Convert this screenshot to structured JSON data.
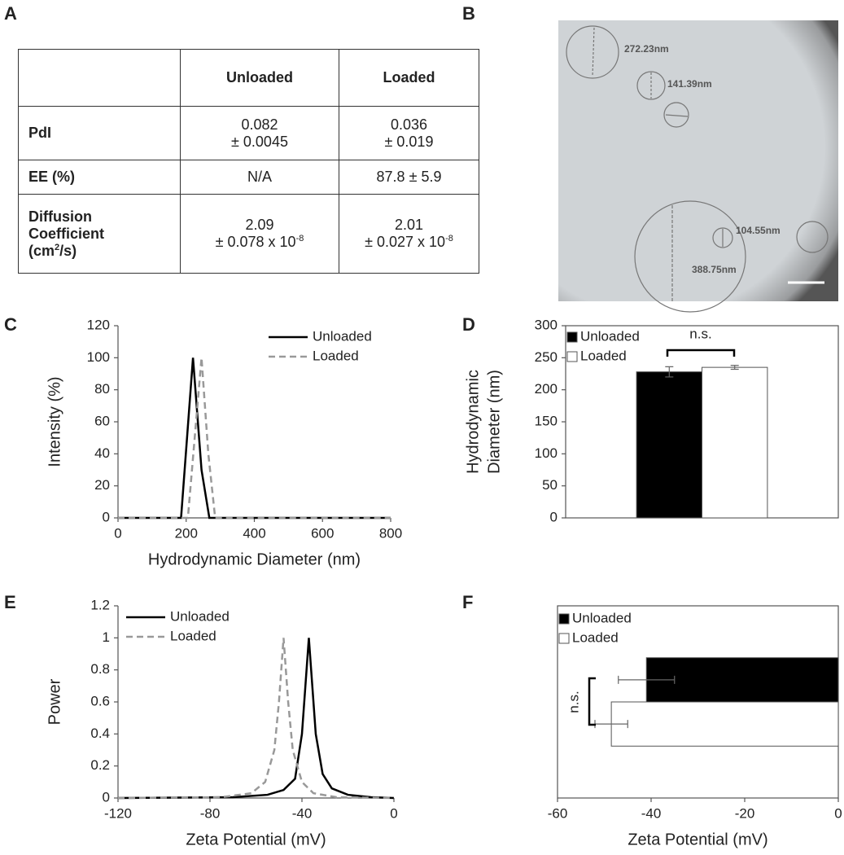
{
  "panel_labels": [
    "A",
    "B",
    "C",
    "D",
    "E",
    "F"
  ],
  "table": {
    "columns": [
      "Unloaded",
      "Loaded"
    ],
    "rows": [
      {
        "header": [
          "PdI"
        ],
        "cells": [
          [
            "0.082",
            "± 0.0045"
          ],
          [
            "0.036",
            "± 0.019"
          ]
        ]
      },
      {
        "header": [
          "EE (%)"
        ],
        "cells": [
          [
            "N/A"
          ],
          [
            "87.8 ± 5.9"
          ]
        ]
      },
      {
        "header": [
          "Diffusion",
          "Coefficient",
          {
            "base": "(cm",
            "sup": "2",
            "tail": "/s)"
          }
        ],
        "cells": [
          [
            "2.09",
            {
              "base": "± 0.078 x 10",
              "sup": "-8"
            }
          ],
          [
            "2.01",
            {
              "base": "± 0.027 x 10",
              "sup": "-8"
            }
          ]
        ]
      }
    ]
  },
  "micrograph": {
    "labels": [
      "272.23nm",
      "141.39nm",
      "104.55nm",
      "388.75nm"
    ]
  },
  "chart_data": [
    {
      "type": "line",
      "x_label": "Hydrodynamic Diameter (nm)",
      "y_label": [
        "Intensity (%)"
      ],
      "xlim": [
        0,
        800
      ],
      "xticks": [
        0,
        200,
        400,
        600,
        800
      ],
      "ylim": [
        0,
        120
      ],
      "yticks": [
        0,
        20,
        40,
        60,
        80,
        100,
        120
      ],
      "legend": "upper right",
      "frame": false,
      "series": [
        {
          "name": "Unloaded",
          "color": "#000000",
          "dash": "solid",
          "x": [
            0,
            185,
            220,
            245,
            268,
            800
          ],
          "values": [
            0,
            0,
            100,
            30,
            0,
            0
          ]
        },
        {
          "name": "Loaded",
          "color": "#999999",
          "dash": "dashed",
          "x": [
            0,
            205,
            245,
            265,
            285,
            800
          ],
          "values": [
            0,
            0,
            100,
            40,
            0,
            0
          ]
        }
      ]
    },
    {
      "type": "bar",
      "y_label": [
        "Hydrodynamic",
        "Diameter (nm)"
      ],
      "categories": [
        null
      ],
      "ylim": [
        0,
        300
      ],
      "yticks": [
        0,
        50,
        100,
        150,
        200,
        250,
        300
      ],
      "legend": "upper left",
      "frame": true,
      "annotation": "n.s.",
      "series": [
        {
          "name": "Unloaded",
          "color": "#000000",
          "values": [
            228
          ],
          "errors": [
            8
          ]
        },
        {
          "name": "Loaded",
          "color": "#ffffff",
          "values": [
            235
          ],
          "errors": [
            3
          ]
        }
      ]
    },
    {
      "type": "line",
      "x_label": "Zeta Potential (mV)",
      "y_label": [
        "Power"
      ],
      "xlim": [
        -120,
        0
      ],
      "xticks": [
        -120,
        -80,
        -40,
        0
      ],
      "ylim": [
        0,
        1.2
      ],
      "yticks": [
        0,
        0.2,
        0.4,
        0.6,
        0.8,
        1,
        1.2
      ],
      "legend": "upper left",
      "frame": false,
      "series": [
        {
          "name": "Unloaded",
          "color": "#000000",
          "dash": "solid",
          "x": [
            -120,
            -70,
            -55,
            -48,
            -43,
            -40,
            -38,
            -37,
            -36,
            -34,
            -31,
            -27,
            -20,
            -10,
            0
          ],
          "values": [
            0,
            0.005,
            0.02,
            0.05,
            0.12,
            0.4,
            0.8,
            1,
            0.8,
            0.4,
            0.15,
            0.06,
            0.02,
            0.005,
            0
          ]
        },
        {
          "name": "Loaded",
          "color": "#999999",
          "dash": "dashed",
          "x": [
            -120,
            -75,
            -62,
            -56,
            -52,
            -50,
            -48,
            -46,
            -44,
            -40,
            -35,
            -25,
            0
          ],
          "values": [
            0,
            0.005,
            0.03,
            0.1,
            0.3,
            0.6,
            1,
            0.6,
            0.3,
            0.1,
            0.03,
            0.005,
            0
          ]
        }
      ]
    },
    {
      "type": "hbar",
      "x_label": "Zeta Potential (mV)",
      "categories": [
        null
      ],
      "xlim": [
        -60,
        0
      ],
      "xticks": [
        -60,
        -40,
        -20,
        0
      ],
      "legend": "upper left",
      "frame": true,
      "annotation": "n.s.",
      "series": [
        {
          "name": "Unloaded",
          "color": "#000000",
          "values": [
            -41
          ],
          "errors": [
            6
          ]
        },
        {
          "name": "Loaded",
          "color": "#ffffff",
          "values": [
            -48.5
          ],
          "errors": [
            3.5
          ]
        }
      ]
    }
  ]
}
